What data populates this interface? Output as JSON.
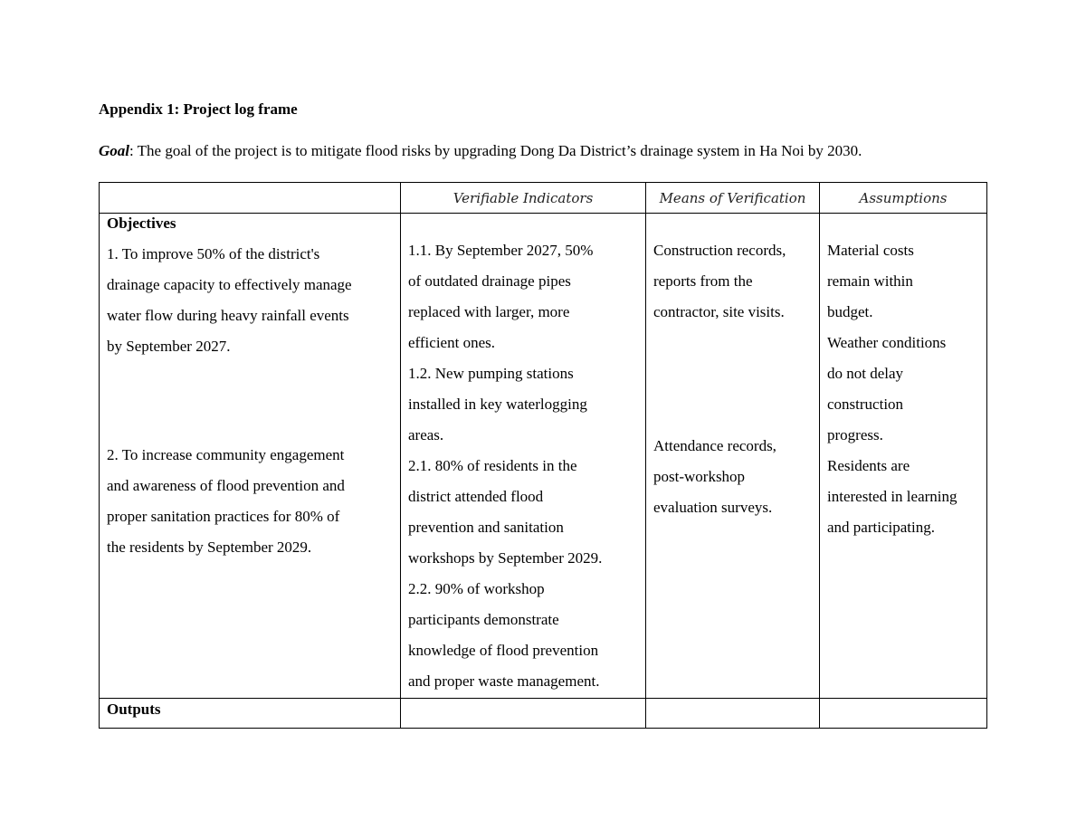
{
  "title": "Appendix 1: Project log frame",
  "goal": {
    "label": "Goal",
    "text": ": The goal of the project is to mitigate flood risks by upgrading Dong Da District’s drainage system in Ha Noi by 2030."
  },
  "table": {
    "headers": [
      "",
      "Verifiable Indicators",
      "Means of Verification",
      "Assumptions"
    ],
    "objectives_label": "Objectives",
    "objectives": [
      [
        "1. To improve 50% of the district's",
        "drainage capacity to effectively manage",
        "water flow during heavy rainfall events",
        "by September 2027."
      ],
      [
        "2. To increase community engagement",
        "and awareness of flood prevention and",
        "proper sanitation practices for 80% of",
        "the residents by September 2029."
      ]
    ],
    "indicators": [
      "1.1. By September 2027, 50%",
      "of outdated drainage pipes",
      "replaced with larger, more",
      "efficient ones.",
      "1.2. New pumping stations",
      "installed in key waterlogging",
      "areas.",
      "2.1. 80% of residents in the",
      "district attended flood",
      "prevention and sanitation",
      "workshops by September 2029.",
      "2.2. 90% of workshop",
      "participants demonstrate",
      "knowledge of flood prevention",
      "and proper waste management."
    ],
    "means": [
      [
        "Construction records,",
        "reports from the",
        "contractor, site visits."
      ],
      [
        "Attendance records,",
        "post-workshop",
        "evaluation surveys."
      ]
    ],
    "assumptions": [
      "Material costs",
      "remain within",
      "budget.",
      "Weather conditions",
      "do not delay",
      "construction",
      "progress.",
      "Residents are",
      "interested in learning",
      "and participating."
    ],
    "outputs_label": "Outputs"
  }
}
